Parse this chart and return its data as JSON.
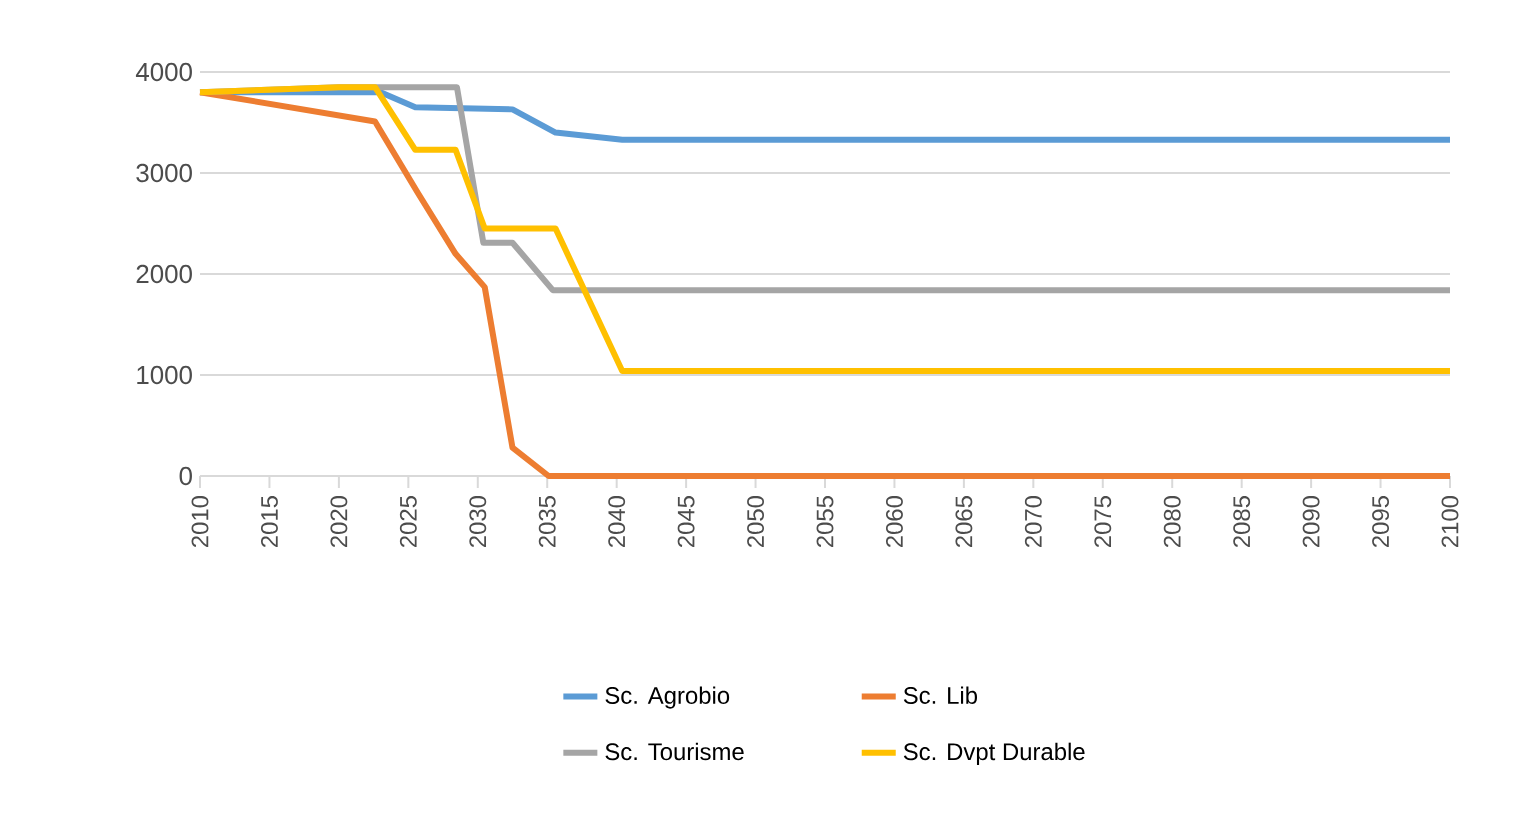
{
  "chart_data": {
    "type": "line",
    "series": [
      {
        "name": "Sc. Agrobio",
        "color": "#5b9bd5",
        "x": [
          2010,
          2023,
          2025.5,
          2032.5,
          2035.6,
          2040.4,
          2100
        ],
        "values": [
          3800,
          3800,
          3650,
          3630,
          3400,
          3330,
          3330
        ]
      },
      {
        "name": "Sc. Lib",
        "color": "#ed7d31",
        "x": [
          2010,
          2022.6,
          2025.7,
          2028.4,
          2030.5,
          2032.5,
          2035.1,
          2100
        ],
        "values": [
          3800,
          3510,
          2800,
          2200,
          1870,
          280,
          0,
          0
        ]
      },
      {
        "name": "Sc. Tourisme",
        "color": "#a5a5a5",
        "x": [
          2010,
          2020,
          2028.5,
          2030.4,
          2032.5,
          2035.4,
          2100
        ],
        "values": [
          3800,
          3850,
          3850,
          2310,
          2310,
          1840,
          1840
        ]
      },
      {
        "name": "Sc. Dvpt Durable",
        "color": "#ffc000",
        "x": [
          2010,
          2020,
          2022.6,
          2025.5,
          2028.4,
          2030.5,
          2035.6,
          2040.4,
          2100
        ],
        "values": [
          3800,
          3850,
          3850,
          3230,
          3230,
          2450,
          2450,
          1040,
          1040
        ]
      }
    ],
    "xlim": [
      2010,
      2100
    ],
    "xticks": [
      2010,
      2015,
      2020,
      2025,
      2030,
      2035,
      2040,
      2045,
      2050,
      2055,
      2060,
      2065,
      2070,
      2075,
      2080,
      2085,
      2090,
      2095,
      2100
    ],
    "ylim": [
      0,
      4000
    ],
    "yticks": [
      0,
      1000,
      2000,
      3000,
      4000
    ],
    "grid": "y",
    "legend": "bottom",
    "marker": "none",
    "line_style": "solid"
  }
}
